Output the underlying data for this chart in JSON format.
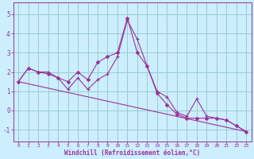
{
  "xlabel": "Windchill (Refroidissement éolien,°C)",
  "background_color": "#cceeff",
  "line_color": "#993399",
  "grid_color": "#99cccc",
  "xlim": [
    -0.5,
    23.5
  ],
  "ylim": [
    -1.6,
    5.6
  ],
  "xtick_labels": [
    "0",
    "1",
    "2",
    "3",
    "4",
    "5",
    "6",
    "7",
    "8",
    "9",
    "10",
    "11",
    "12",
    "13",
    "14",
    "15",
    "16",
    "17",
    "18",
    "19",
    "20",
    "21",
    "22",
    "23"
  ],
  "ytick_labels": [
    "-1",
    "0",
    "1",
    "2",
    "3",
    "4",
    "5"
  ],
  "ytick_vals": [
    -1,
    0,
    1,
    2,
    3,
    4,
    5
  ],
  "line1_x": [
    0,
    1,
    2,
    3,
    4,
    5,
    6,
    7,
    8,
    9,
    10,
    11,
    12,
    13,
    14,
    15,
    16,
    17,
    18,
    19,
    20,
    21,
    22,
    23
  ],
  "line1_y": [
    1.5,
    2.2,
    2.0,
    2.0,
    1.7,
    1.1,
    1.7,
    1.1,
    1.6,
    1.9,
    2.8,
    4.7,
    3.7,
    2.3,
    1.0,
    0.7,
    -0.1,
    -0.3,
    0.6,
    -0.3,
    -0.4,
    -0.5,
    -0.8,
    -1.1
  ],
  "line2_x": [
    0,
    1,
    2,
    3,
    4,
    5,
    6,
    7,
    8,
    9,
    10,
    11,
    12,
    13,
    14,
    15,
    16,
    17,
    18,
    19,
    20,
    21,
    22,
    23
  ],
  "line2_y": [
    1.5,
    2.2,
    2.0,
    1.9,
    1.7,
    1.5,
    2.0,
    1.6,
    2.5,
    2.8,
    3.0,
    4.8,
    3.0,
    2.3,
    0.9,
    0.3,
    -0.2,
    -0.4,
    -0.4,
    -0.4,
    -0.4,
    -0.5,
    -0.8,
    -1.1
  ],
  "line3_x": [
    0,
    23
  ],
  "line3_y": [
    1.5,
    -1.1
  ]
}
